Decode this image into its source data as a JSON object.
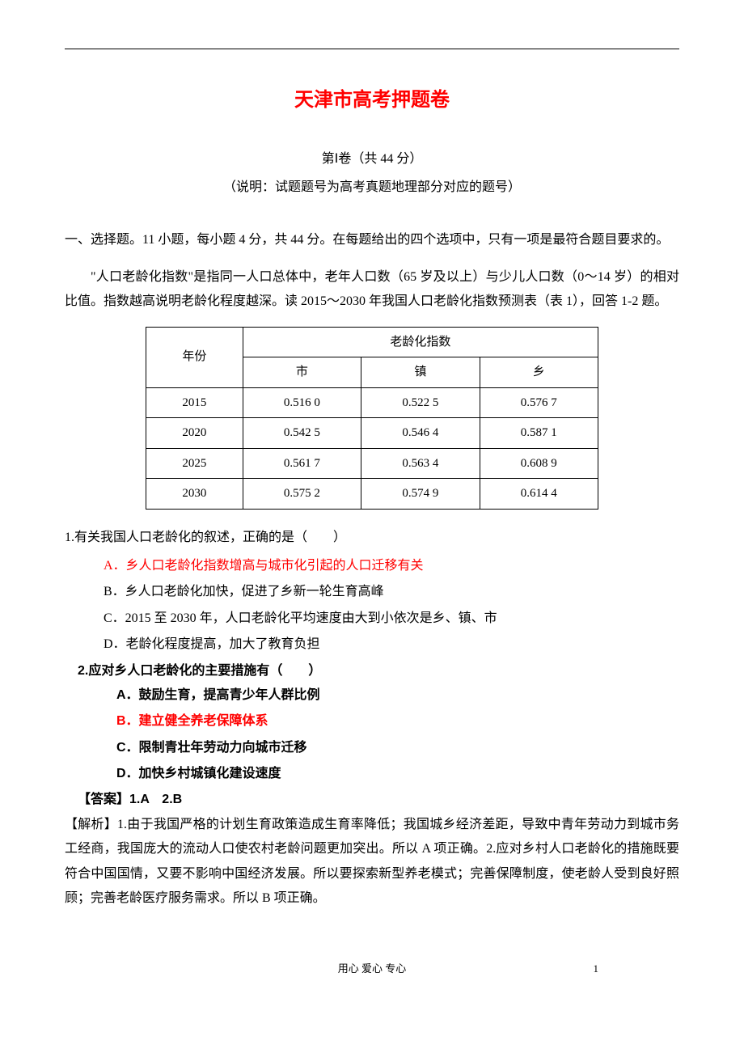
{
  "title": "天津市高考押题卷",
  "subtitle": "第Ⅰ卷（共 44 分）",
  "note": "（说明：试题题号为高考真题地理部分对应的题号）",
  "section_intro": "一、选择题。11 小题，每小题 4 分，共 44 分。在每题给出的四个选项中，只有一项是最符合题目要求的。",
  "passage": "\"人口老龄化指数\"是指同一人口总体中，老年人口数（65 岁及以上）与少儿人口数（0～14 岁）的相对比值。指数越高说明老龄化程度越深。读 2015～2030 年我国人口老龄化指数预测表（表 1），回答 1-2 题。",
  "table": {
    "header_main": "年份",
    "header_group": "老龄化指数",
    "columns": [
      "市",
      "镇",
      "乡"
    ],
    "rows": [
      {
        "year": "2015",
        "values": [
          "0.516 0",
          "0.522 5",
          "0.576 7"
        ]
      },
      {
        "year": "2020",
        "values": [
          "0.542 5",
          "0.546 4",
          "0.587 1"
        ]
      },
      {
        "year": "2025",
        "values": [
          "0.561 7",
          "0.563 4",
          "0.608 9"
        ]
      },
      {
        "year": "2030",
        "values": [
          "0.575 2",
          "0.574 9",
          "0.614 4"
        ]
      }
    ]
  },
  "q1": {
    "stem": "1.有关我国人口老龄化的叙述，正确的是（　　）",
    "options": {
      "A": "A．乡人口老龄化指数增高与城市化引起的人口迁移有关",
      "B": "B．乡人口老龄化加快，促进了乡新一轮生育高峰",
      "C": "C．2015 至 2030 年，人口老龄化平均速度由大到小依次是乡、镇、市",
      "D": "D．老龄化程度提高，加大了教育负担"
    }
  },
  "q2": {
    "stem": "2.应对乡人口老龄化的主要措施有（　　）",
    "options": {
      "A": "A．鼓励生育，提高青少年人群比例",
      "B": "B．建立健全养老保障体系",
      "C": "C．限制青壮年劳动力向城市迁移",
      "D": "D．加快乡村城镇化建设速度"
    }
  },
  "answer": "【答案】1.A　2.B",
  "explanation": "【解析】1.由于我国严格的计划生育政策造成生育率降低；我国城乡经济差距，导致中青年劳动力到城市务工经商，我国庞大的流动人口使农村老龄问题更加突出。所以 A 项正确。2.应对乡村人口老龄化的措施既要符合中国国情，又要不影响中国经济发展。所以要探索新型养老模式；完善保障制度，使老龄人受到良好照顾；完善老龄医疗服务需求。所以 B 项正确。",
  "footer": "用心 爱心 专心",
  "page_num": "1"
}
